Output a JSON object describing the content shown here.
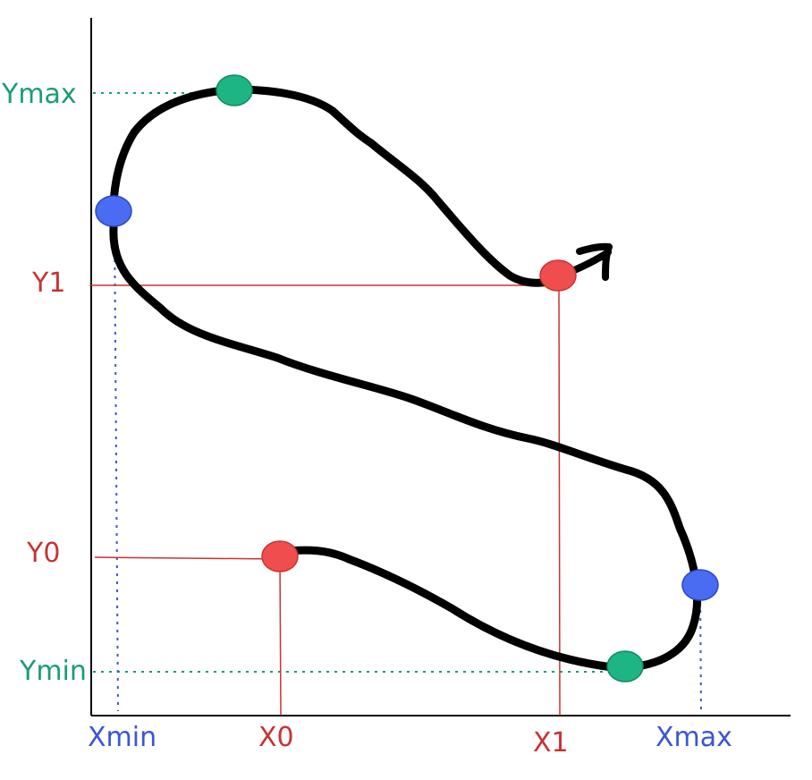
{
  "labels": {
    "ymax": "Ymax",
    "y1": "Y1",
    "y0": "Y0",
    "ymin": "Ymin",
    "xmin": "Xmin",
    "x0": "X0",
    "x1": "X1",
    "xmax": "Xmax"
  },
  "colors": {
    "green": "#1a9e6f",
    "green_fill": "#1db583",
    "blue": "#3b56d4",
    "blue_fill": "#4a6cf2",
    "red": "#c73333",
    "red_fill": "#f04e4e",
    "curve": "#000000",
    "axis": "#000000"
  }
}
